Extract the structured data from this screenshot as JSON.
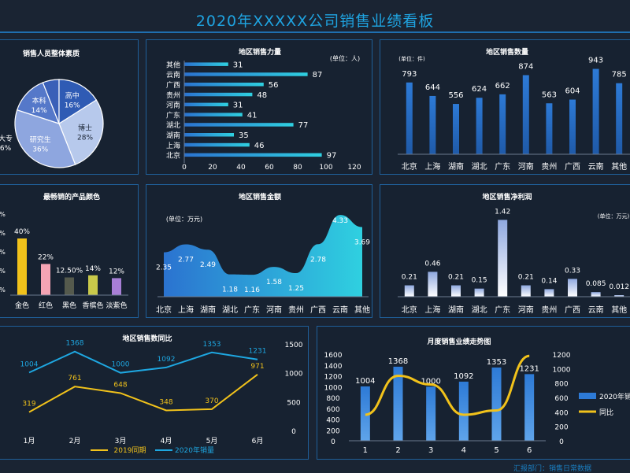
{
  "page": {
    "title": "2020年XXXXX公司销售业绩看板",
    "footer": "汇报部门：销售日常数据"
  },
  "colors": {
    "accent": "#1fa3e0",
    "panel_border": "#1f5f99",
    "bar_blue": "#2a72c8",
    "line_gold": "#f1c21b",
    "line_blue": "#1ea7e1",
    "axis_text": "#ffffff"
  },
  "chart_data": [
    {
      "id": "staff",
      "type": "pie",
      "title": "销售人员整体素质",
      "categories": [
        "博士",
        "研究生",
        "本科",
        "大专",
        "高中"
      ],
      "values": [
        28,
        36,
        14,
        6,
        16
      ],
      "labels": [
        "28%",
        "36%",
        "14%",
        "6%",
        "16%"
      ],
      "colors": [
        "#b7c9ec",
        "#8ea6df",
        "#5578c9",
        "#3a60b8",
        "#2f5bb4"
      ]
    },
    {
      "id": "capacity",
      "type": "bar",
      "orientation": "horizontal",
      "title": "地区销售力量",
      "unit": "(单位：人)",
      "categories": [
        "其他",
        "云南",
        "广西",
        "贵州",
        "河南",
        "广东",
        "湖北",
        "湖南",
        "上海",
        "北京"
      ],
      "values": [
        31,
        87,
        56,
        48,
        31,
        41,
        77,
        35,
        46,
        97
      ],
      "xlim": [
        0,
        120
      ],
      "xticks": [
        0,
        20,
        40,
        60,
        80,
        100,
        120
      ]
    },
    {
      "id": "quantity",
      "type": "bar",
      "title": "地区销售数量",
      "unit": "(单位：件)",
      "categories": [
        "北京",
        "上海",
        "湖南",
        "湖北",
        "广东",
        "河南",
        "贵州",
        "广西",
        "云南",
        "其他"
      ],
      "values": [
        793,
        644,
        556,
        624,
        662,
        874,
        563,
        604,
        943,
        785
      ],
      "ylim": [
        0,
        1000
      ]
    },
    {
      "id": "colors",
      "type": "bar",
      "title": "最畅销的产品颜色",
      "categories": [
        "金色",
        "红色",
        "黑色",
        "香槟色",
        "淡紫色"
      ],
      "values": [
        40,
        22,
        12.5,
        14,
        12
      ],
      "labels": [
        "40%",
        "22%",
        "12.50%",
        "14%",
        "12%"
      ],
      "bar_colors": [
        "#f1c21b",
        "#f4a4b4",
        "#555a4d",
        "#c9c94a",
        "#a87fd6"
      ],
      "ylim": [
        0,
        50
      ]
    },
    {
      "id": "amount",
      "type": "area",
      "title": "地区销售金额",
      "unit": "(单位：万元)",
      "categories": [
        "北京",
        "上海",
        "湖南",
        "湖北",
        "广东",
        "河南",
        "贵州",
        "广西",
        "云南",
        "其他"
      ],
      "values": [
        2.35,
        2.77,
        2.49,
        1.18,
        1.16,
        1.58,
        1.25,
        2.78,
        4.33,
        3.69
      ],
      "labels": [
        "2.35",
        "2.77",
        "2.49",
        "1.18",
        "1.16",
        "1.58",
        "1.25",
        "2.78",
        "4.33",
        "3.69"
      ],
      "ylim": [
        0,
        5
      ]
    },
    {
      "id": "profit",
      "type": "bar",
      "title": "地区销售净利润",
      "unit": "(单位：万元)",
      "categories": [
        "北京",
        "上海",
        "湖南",
        "湖北",
        "广东",
        "河南",
        "贵州",
        "广西",
        "云南",
        "其他"
      ],
      "values": [
        0.21,
        0.46,
        0.21,
        0.15,
        1.42,
        0.21,
        0.14,
        0.33,
        0.085,
        0.012
      ],
      "labels": [
        "0.21",
        "0.46",
        "0.21",
        "0.15",
        "1.42",
        "0.21",
        "0.14",
        "0.33",
        "0.085",
        "0.012"
      ],
      "ylim": [
        0,
        1.6
      ]
    },
    {
      "id": "yoy",
      "type": "line",
      "title": "地区销售数同比",
      "categories": [
        "1月",
        "2月",
        "3月",
        "4月",
        "5月",
        "6月"
      ],
      "series": [
        {
          "name": "2019同期",
          "values": [
            319,
            761,
            648,
            348,
            370,
            971
          ],
          "color": "#f1c21b"
        },
        {
          "name": "2020年销量",
          "values": [
            1004,
            1368,
            1000,
            1092,
            1353,
            1231
          ],
          "color": "#1ea7e1"
        }
      ],
      "ylim": [
        0,
        1500
      ],
      "yticks": [
        0,
        500,
        1000,
        1500
      ]
    },
    {
      "id": "trend",
      "type": "bar",
      "title": "月度销售业绩走势图",
      "categories": [
        "1",
        "2",
        "3",
        "4",
        "5",
        "6"
      ],
      "series": [
        {
          "name": "2020年销量",
          "values": [
            1004,
            1368,
            1000,
            1092,
            1353,
            1231
          ],
          "kind": "bar"
        },
        {
          "name": "同比",
          "values": [
            0.3,
            0.75,
            0.65,
            0.3,
            0.35,
            0.98
          ],
          "kind": "line"
        }
      ],
      "ylim": [
        0,
        1600
      ],
      "yticks": [
        0,
        200,
        400,
        600,
        800,
        1000,
        1200,
        1400,
        1600
      ],
      "y2lim": [
        0,
        1200
      ],
      "y2ticks": [
        0,
        200,
        400,
        600,
        800,
        1000,
        1200
      ],
      "legend": "right"
    }
  ]
}
